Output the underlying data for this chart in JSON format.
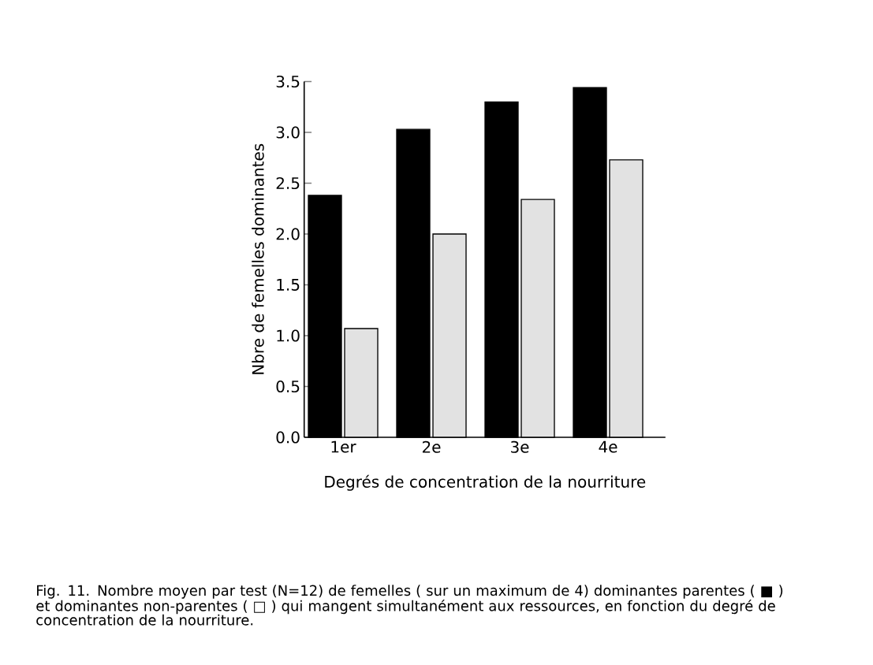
{
  "chart_data": {
    "type": "bar",
    "xlabel": "Degrés de concentration de la nourriture",
    "ylabel": "Nbre de femelles dominantes",
    "categories": [
      "1er",
      "2e",
      "3e",
      "4e"
    ],
    "series": [
      {
        "color": "#000000",
        "values": [
          2.38,
          3.03,
          3.3,
          3.44
        ]
      },
      {
        "color": "#e2e2e2",
        "values": [
          1.07,
          2.0,
          2.34,
          2.73
        ]
      }
    ],
    "ylim": [
      0,
      3.5
    ],
    "yticks": [
      {
        "value": 0,
        "label": "0.0"
      },
      {
        "value": 0.5,
        "label": "0.5"
      },
      {
        "value": 1,
        "label": "1.0"
      },
      {
        "value": 1.5,
        "label": "1.5"
      },
      {
        "value": 2,
        "label": "2.0"
      },
      {
        "value": 2.5,
        "label": "2.5"
      },
      {
        "value": 3,
        "label": "3.0"
      },
      {
        "value": 3.5,
        "label": "3.5"
      }
    ],
    "annotations": [
      "Fig. 11. Nombre moyen par test (N=12) de femelles ( sur un maximum de 4) dominantes parentes ( ■ ) et dominantes non-parentes ( □ ) qui mangent simultanément aux ressources, en fonction du degré de concentration de la nourriture."
    ]
  }
}
